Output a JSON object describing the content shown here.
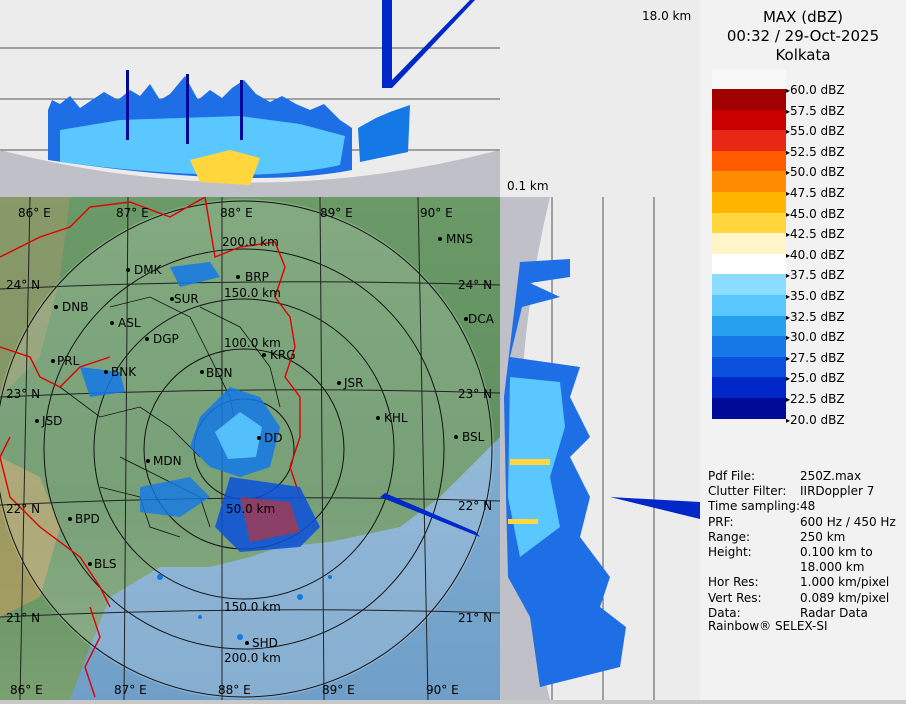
{
  "header": {
    "product": "MAX (dBZ)",
    "datetime": "00:32 / 29-Oct-2025",
    "station": "Kolkata"
  },
  "height_labels": {
    "top": "18.0 km",
    "bottom": "0.1 km"
  },
  "legend": {
    "entries": [
      {
        "label": "60.0 dBZ",
        "color": ""
      },
      {
        "label": "57.5 dBZ",
        "color": "#a00000"
      },
      {
        "label": "55.0 dBZ",
        "color": "#c80000"
      },
      {
        "label": "52.5 dBZ",
        "color": "#e62814"
      },
      {
        "label": "50.0 dBZ",
        "color": "#ff5a00"
      },
      {
        "label": "47.5 dBZ",
        "color": "#ff8c00"
      },
      {
        "label": "45.0 dBZ",
        "color": "#ffb400"
      },
      {
        "label": "42.5 dBZ",
        "color": "#ffd73c"
      },
      {
        "label": "40.0 dBZ",
        "color": "#fff5c8"
      },
      {
        "label": "37.5 dBZ",
        "color": "#ffffff"
      },
      {
        "label": "35.0 dBZ",
        "color": "#8cdcff"
      },
      {
        "label": "32.5 dBZ",
        "color": "#5ac8ff"
      },
      {
        "label": "30.0 dBZ",
        "color": "#28a0f0"
      },
      {
        "label": "27.5 dBZ",
        "color": "#1478e6"
      },
      {
        "label": "25.0 dBZ",
        "color": "#0a50dc"
      },
      {
        "label": "22.5 dBZ",
        "color": "#0028c8"
      },
      {
        "label": "20.0 dBZ",
        "color": "#000a96"
      }
    ]
  },
  "info": [
    {
      "key": "Pdf File:",
      "value": "250Z.max"
    },
    {
      "key": "Clutter Filter:",
      "value": "IIRDoppler 7"
    },
    {
      "key": "Time sampling:",
      "value": "48"
    },
    {
      "key": "PRF:",
      "value": "600 Hz / 450 Hz"
    },
    {
      "key": "Range:",
      "value": "250 km"
    },
    {
      "key": "Height:",
      "value": "0.100 km to"
    },
    {
      "key": "",
      "value": "18.000 km"
    },
    {
      "key": "Hor Res:",
      "value": "1.000 km/pixel"
    },
    {
      "key": "Vert Res:",
      "value": "0.089 km/pixel"
    },
    {
      "key": "Data:",
      "value": "Radar Data"
    }
  ],
  "footer": "Rainbow® SELEX-SI",
  "map": {
    "longitudes_top": [
      "86° E",
      "87° E",
      "88° E",
      "89° E",
      "90° E"
    ],
    "longitudes_bottom": [
      "86° E",
      "87° E",
      "88° E",
      "89° E",
      "90° E"
    ],
    "latitudes_left": [
      "24° N",
      "23° N",
      "22° N",
      "21° N"
    ],
    "latitudes_right": [
      "24° N",
      "23° N",
      "22° N",
      "21° N"
    ],
    "range_rings": [
      "200.0 km",
      "150.0 km",
      "100.0 km",
      "50.0 km",
      "150.0 km",
      "200.0 km"
    ],
    "cities": [
      "MNS",
      "DMK",
      "BRP",
      "SUR",
      "DNB",
      "ASL",
      "DGP",
      "DCA",
      "KRG",
      "PRL",
      "BNK",
      "BDN",
      "JSR",
      "KHL",
      "JSD",
      "DD",
      "BSL",
      "MDN",
      "BPD",
      "BLS",
      "SHD"
    ]
  }
}
